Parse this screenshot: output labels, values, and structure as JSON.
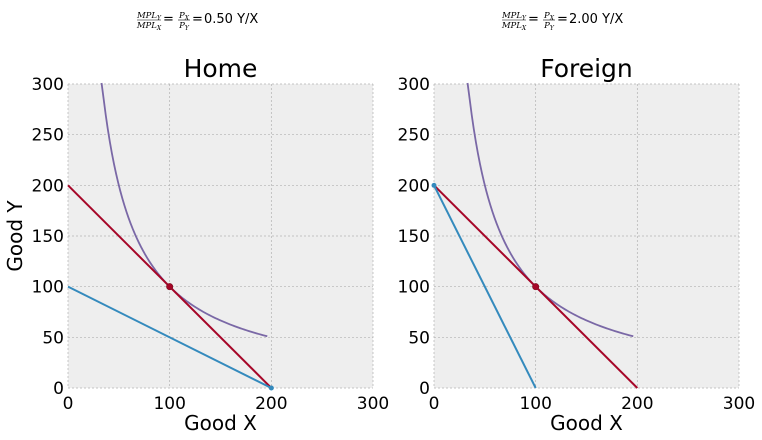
{
  "chart_data": [
    {
      "type": "line",
      "title": "Home",
      "annotation": {
        "numerator": "MPL",
        "numerator_sub": "Y",
        "denominator": "MPL",
        "denominator_sub": "X",
        "rhs_numerator": "P",
        "rhs_numerator_sub": "X",
        "rhs_denominator": "P",
        "rhs_denominator_sub": "Y",
        "value_text": "0.50 Y/X"
      },
      "xlabel": "Good X",
      "ylabel": "Good Y",
      "xlim": [
        0,
        300
      ],
      "ylim": [
        0,
        300
      ],
      "x_ticks": [
        "0",
        "100",
        "200",
        "300"
      ],
      "y_ticks": [
        "0",
        "50",
        "100",
        "150",
        "200",
        "250",
        "300"
      ],
      "grid": true,
      "series": [
        {
          "kind": "indifference_curve",
          "color": "#7a68a6",
          "function": "y = 10000 / x",
          "x_range": [
            33,
            196
          ]
        },
        {
          "kind": "line",
          "color": "#a60628",
          "points": [
            [
              0,
              200
            ],
            [
              200,
              0
            ]
          ]
        },
        {
          "kind": "line",
          "color": "#348abd",
          "points": [
            [
              0,
              100
            ],
            [
              200,
              0
            ]
          ]
        }
      ],
      "marker": {
        "x": 100,
        "y": 100,
        "color": "#a60628"
      },
      "endpoint_marker": {
        "x": 200,
        "y": 0,
        "color": "#348abd"
      }
    },
    {
      "type": "line",
      "title": "Foreign",
      "annotation": {
        "numerator": "MPL",
        "numerator_sub": "Y",
        "denominator": "MPL",
        "denominator_sub": "X",
        "rhs_numerator": "P",
        "rhs_numerator_sub": "X",
        "rhs_denominator": "P",
        "rhs_denominator_sub": "Y",
        "value_text": "2.00 Y/X"
      },
      "xlabel": "Good X",
      "ylabel": "",
      "xlim": [
        0,
        300
      ],
      "ylim": [
        0,
        300
      ],
      "x_ticks": [
        "0",
        "100",
        "200",
        "300"
      ],
      "y_ticks": [
        "0",
        "50",
        "100",
        "150",
        "200",
        "250",
        "300"
      ],
      "grid": true,
      "series": [
        {
          "kind": "indifference_curve",
          "color": "#7a68a6",
          "function": "y = 10000 / x",
          "x_range": [
            33,
            196
          ]
        },
        {
          "kind": "line",
          "color": "#a60628",
          "points": [
            [
              0,
              200
            ],
            [
              200,
              0
            ]
          ]
        },
        {
          "kind": "line",
          "color": "#348abd",
          "points": [
            [
              0,
              200
            ],
            [
              100,
              0
            ]
          ]
        }
      ],
      "marker": {
        "x": 100,
        "y": 100,
        "color": "#a60628"
      },
      "endpoint_marker": {
        "x": 0,
        "y": 200,
        "color": "#348abd"
      }
    }
  ]
}
